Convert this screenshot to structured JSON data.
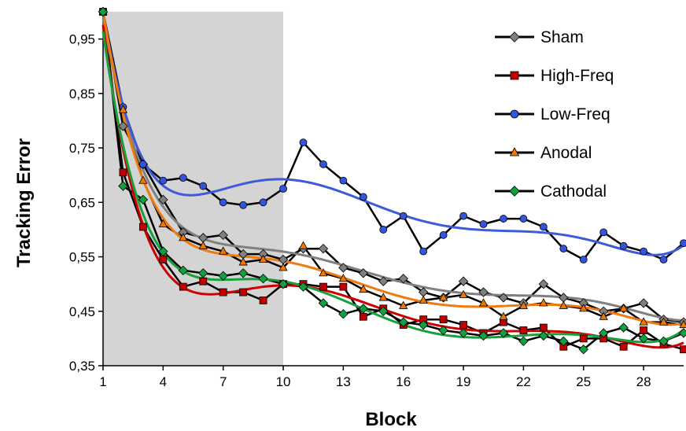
{
  "chart_data": {
    "type": "line",
    "xlabel": "Block",
    "ylabel": "Tracking Error",
    "x": [
      1,
      2,
      3,
      4,
      5,
      6,
      7,
      8,
      9,
      10,
      11,
      12,
      13,
      14,
      15,
      16,
      17,
      18,
      19,
      20,
      21,
      22,
      23,
      24,
      25,
      26,
      27,
      28,
      29,
      30
    ],
    "xticks": [
      1,
      4,
      7,
      10,
      13,
      16,
      19,
      22,
      25,
      28
    ],
    "xtick_labels": [
      "1",
      "4",
      "7",
      "10",
      "13",
      "16",
      "19",
      "22",
      "25",
      "28"
    ],
    "xlim": [
      1,
      30
    ],
    "ylim": [
      0.35,
      1.0
    ],
    "yticks": [
      0.35,
      0.45,
      0.55,
      0.65,
      0.75,
      0.85,
      0.95
    ],
    "ytick_labels": [
      "0,35",
      "0,45",
      "0,55",
      "0,65",
      "0,75",
      "0,85",
      "0,95"
    ],
    "shaded_region": {
      "x_start": 1,
      "x_end": 10,
      "color": "#d4d4d4"
    },
    "legend_position": "top-right",
    "series": [
      {
        "name": "Sham",
        "marker": "diamond",
        "marker_color": "#7f7f7f",
        "trend_color": "#808080",
        "values": [
          1.0,
          0.79,
          0.72,
          0.655,
          0.595,
          0.585,
          0.59,
          0.555,
          0.555,
          0.545,
          0.565,
          0.565,
          0.53,
          0.52,
          0.505,
          0.51,
          0.485,
          0.475,
          0.505,
          0.485,
          0.475,
          0.465,
          0.5,
          0.475,
          0.465,
          0.45,
          0.455,
          0.465,
          0.435,
          0.43
        ]
      },
      {
        "name": "High-Freq",
        "marker": "square",
        "marker_color": "#c00000",
        "trend_color": "#cc0000",
        "values": [
          1.0,
          0.705,
          0.605,
          0.545,
          0.495,
          0.505,
          0.485,
          0.485,
          0.47,
          0.5,
          0.5,
          0.495,
          0.495,
          0.44,
          0.455,
          0.425,
          0.435,
          0.435,
          0.425,
          0.41,
          0.43,
          0.415,
          0.42,
          0.385,
          0.4,
          0.4,
          0.385,
          0.415,
          0.39,
          0.38
        ]
      },
      {
        "name": "Low-Freq",
        "marker": "circle",
        "marker_color": "#3355dd",
        "trend_color": "#3c5ad9",
        "values": [
          1.0,
          0.825,
          0.72,
          0.69,
          0.695,
          0.68,
          0.65,
          0.645,
          0.65,
          0.675,
          0.76,
          0.72,
          0.69,
          0.66,
          0.6,
          0.625,
          0.56,
          0.59,
          0.625,
          0.61,
          0.62,
          0.62,
          0.605,
          0.565,
          0.545,
          0.595,
          0.57,
          0.56,
          0.545,
          0.575
        ]
      },
      {
        "name": "Anodal",
        "marker": "triangle",
        "marker_color": "#f07800",
        "trend_color": "#ee7a10",
        "values": [
          1.0,
          0.82,
          0.69,
          0.61,
          0.585,
          0.57,
          0.56,
          0.54,
          0.545,
          0.53,
          0.57,
          0.52,
          0.51,
          0.49,
          0.475,
          0.46,
          0.47,
          0.475,
          0.48,
          0.465,
          0.44,
          0.46,
          0.465,
          0.46,
          0.455,
          0.44,
          0.455,
          0.43,
          0.43,
          0.425
        ]
      },
      {
        "name": "Cathodal",
        "marker": "diamond",
        "marker_color": "#10a040",
        "trend_color": "#18a03c",
        "values": [
          1.0,
          0.68,
          0.655,
          0.56,
          0.525,
          0.52,
          0.515,
          0.52,
          0.51,
          0.5,
          0.495,
          0.465,
          0.445,
          0.455,
          0.45,
          0.43,
          0.425,
          0.415,
          0.41,
          0.405,
          0.41,
          0.395,
          0.405,
          0.395,
          0.38,
          0.41,
          0.42,
          0.4,
          0.395,
          0.41
        ]
      }
    ]
  }
}
